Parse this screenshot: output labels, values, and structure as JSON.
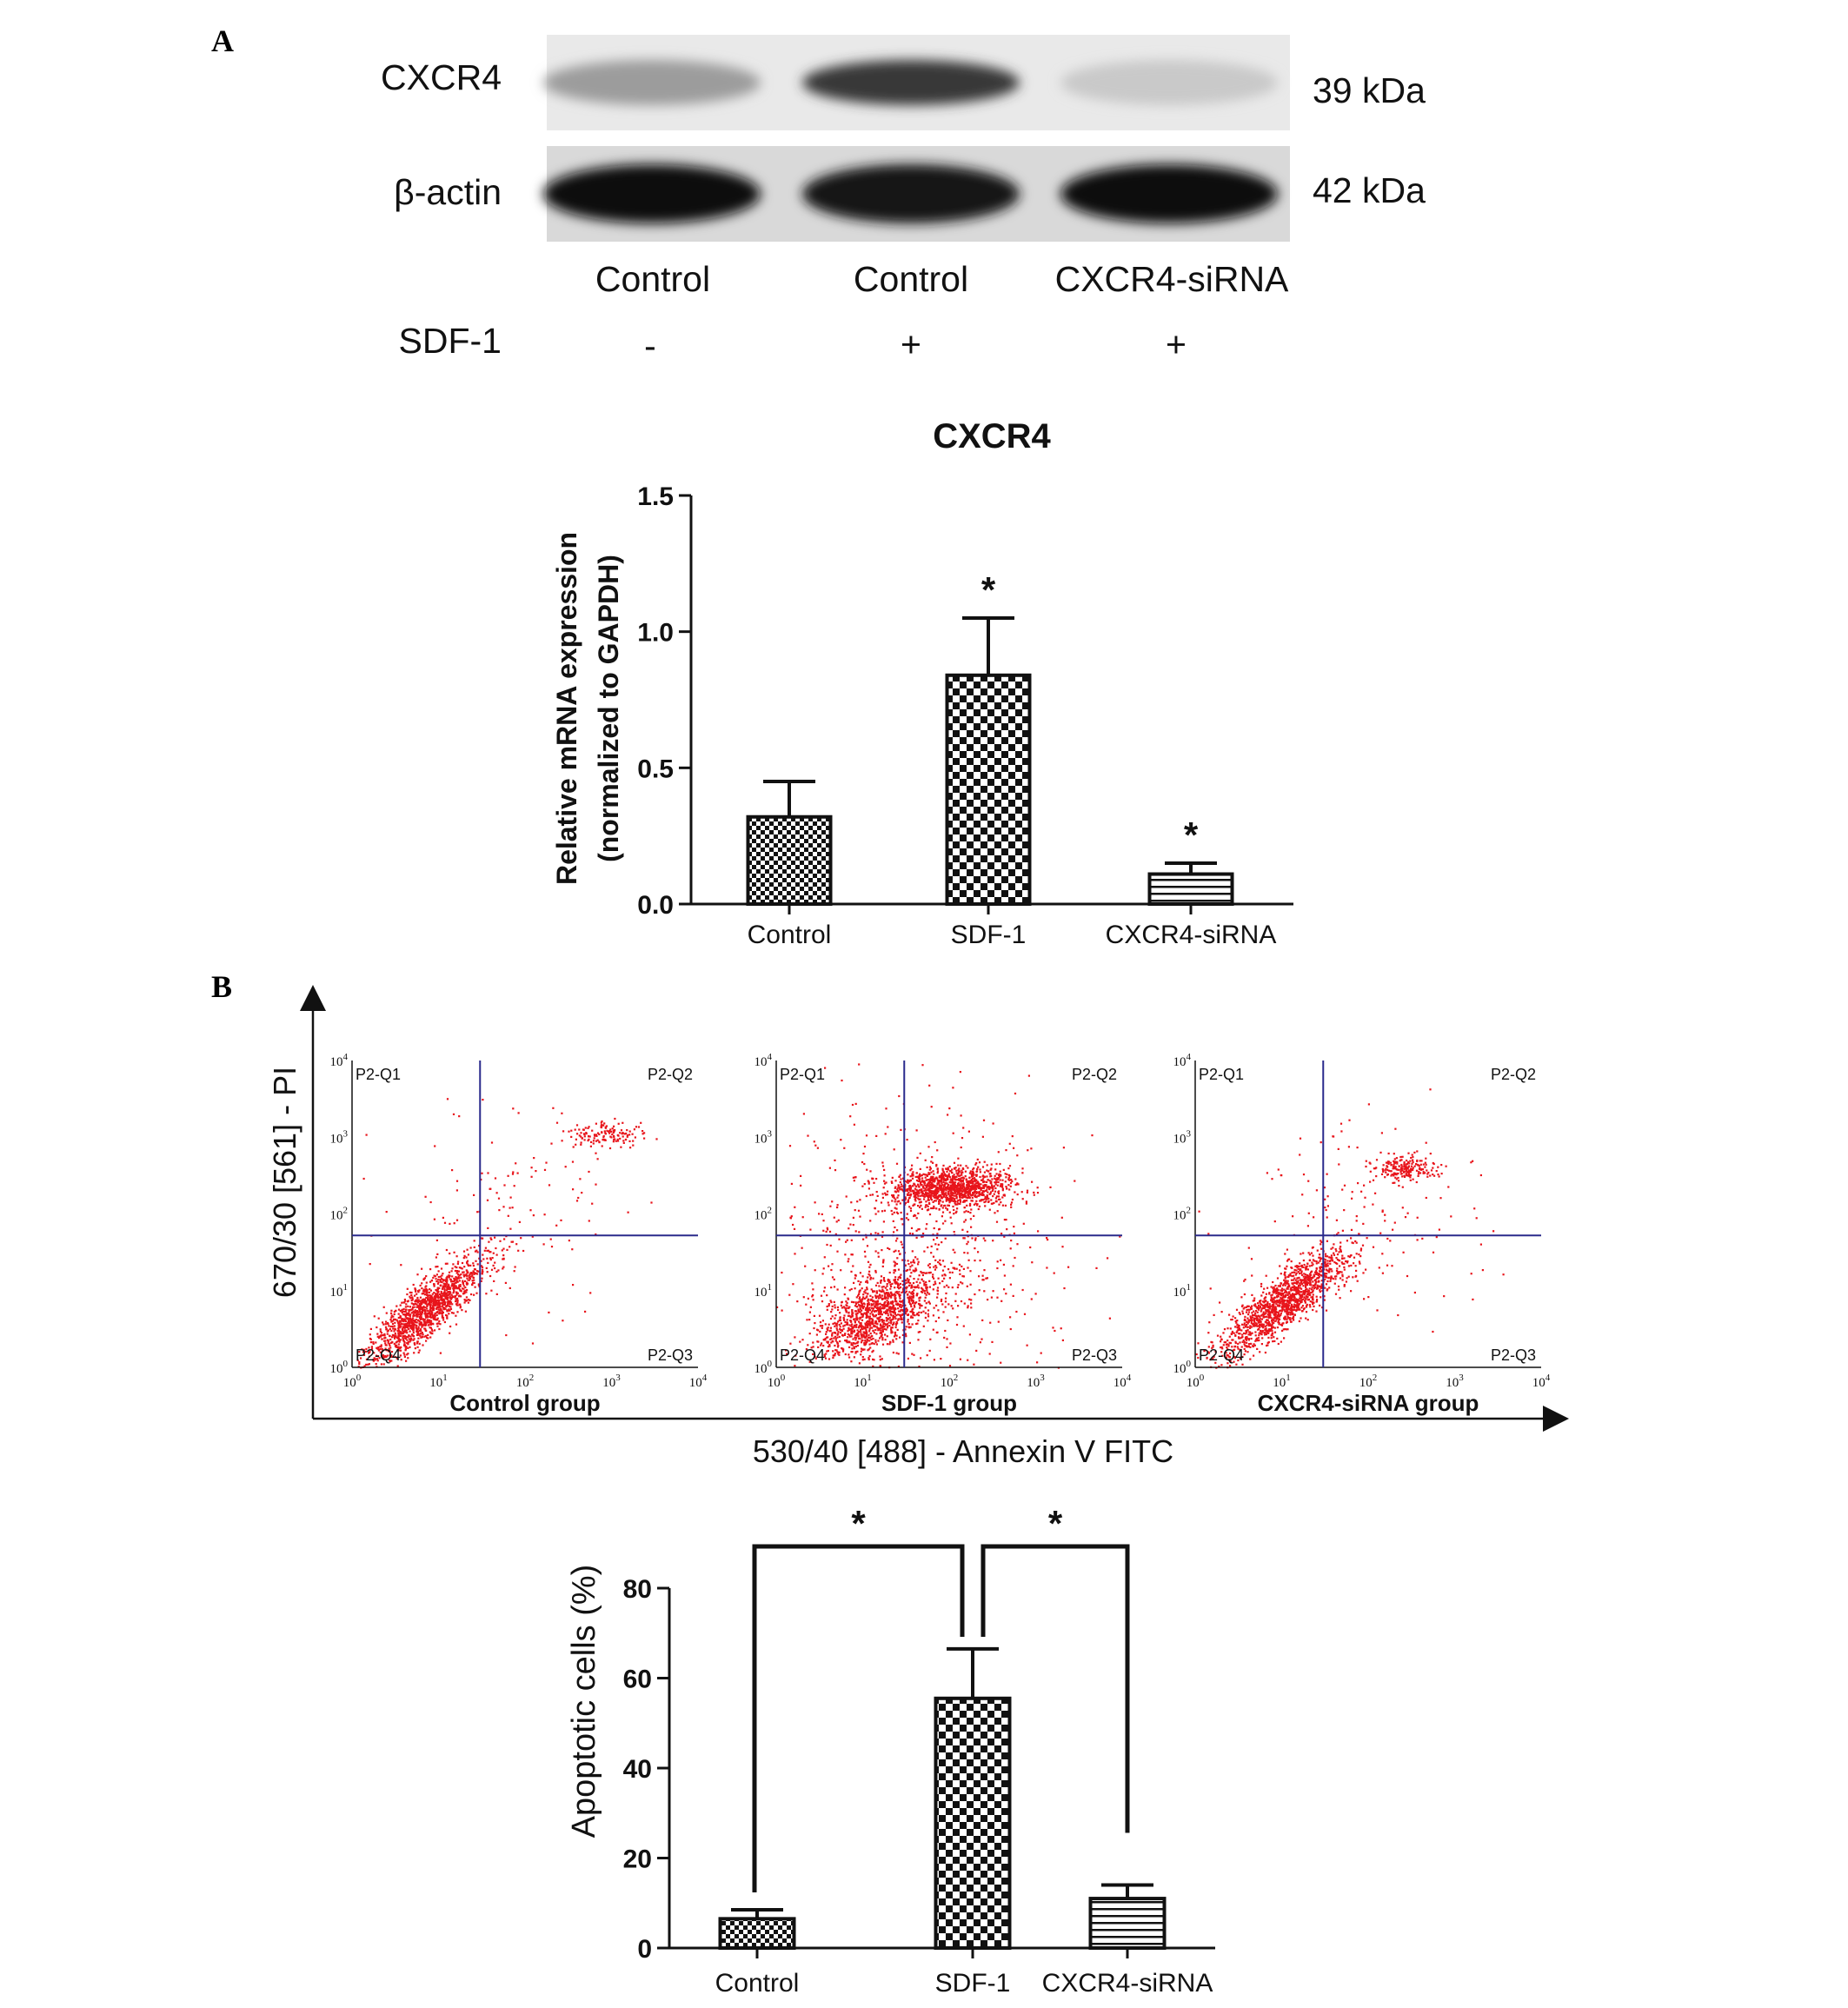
{
  "panels": {
    "a": "A",
    "b": "B"
  },
  "western_blot": {
    "rows": [
      {
        "protein": "CXCR4",
        "size": "39 kDa",
        "band_intensities": [
          0.35,
          0.8,
          0.15
        ]
      },
      {
        "protein": "β-actin",
        "size": "42 kDa",
        "band_intensities": [
          1.0,
          0.95,
          1.0
        ]
      }
    ],
    "lanes": [
      "Control",
      "Control",
      "CXCR4-siRNA"
    ],
    "treatment_label": "SDF-1",
    "treatment_signs": [
      "-",
      "+",
      "+"
    ]
  },
  "chart_data": [
    {
      "type": "bar",
      "title": "CXCR4",
      "ylabel_line1": "Relative mRNA expression",
      "ylabel_line2": "(normalized to GAPDH)",
      "categories": [
        "Control",
        "SDF-1",
        "CXCR4-siRNA"
      ],
      "values": [
        0.32,
        0.84,
        0.11
      ],
      "errors": [
        0.13,
        0.21,
        0.04
      ],
      "significance": [
        "",
        "*",
        "*"
      ],
      "ylim": [
        0,
        1.5
      ],
      "yticks": [
        "0.0",
        "0.5",
        "1.0",
        "1.5"
      ],
      "patterns": [
        "small-checker",
        "large-checker",
        "horizontal-lines"
      ]
    },
    {
      "type": "bar",
      "ylabel": "Apoptotic cells (%)",
      "categories": [
        "Control",
        "SDF-1",
        "CXCR4-siRNA"
      ],
      "values": [
        6.5,
        55.5,
        11
      ],
      "errors": [
        2,
        11,
        3
      ],
      "ylim": [
        0,
        80
      ],
      "yticks": [
        "0",
        "20",
        "40",
        "60",
        "80"
      ],
      "comparisons": [
        {
          "from": "Control",
          "to": "SDF-1",
          "label": "*"
        },
        {
          "from": "SDF-1",
          "to": "CXCR4-siRNA",
          "label": "*"
        }
      ],
      "patterns": [
        "small-checker",
        "large-checker",
        "horizontal-lines"
      ]
    }
  ],
  "flow_cytometry": {
    "y_axis_label": "670/30 [561] - PI",
    "x_axis_label": "530/40 [488] - Annexin V FITC",
    "quadrants": [
      "P2-Q1",
      "P2-Q2",
      "P2-Q3",
      "P2-Q4"
    ],
    "tick_exponents": [
      "0",
      "1",
      "2",
      "3",
      "4"
    ],
    "tick_base": "10",
    "groups": [
      "Control group",
      "SDF-1 group",
      "CXCR4-siRNA group"
    ],
    "dot_color": "#e8141b",
    "gate_color": "#2a2a8c"
  }
}
